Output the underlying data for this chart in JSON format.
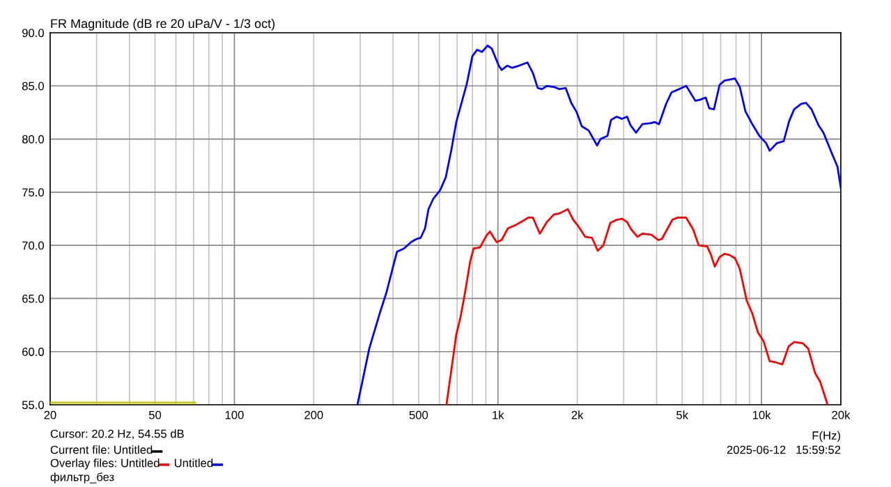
{
  "chart_data": {
    "type": "line",
    "title": "FR Magnitude (dB re 20 uPa/V - 1/3 oct)",
    "xlabel": "F(Hz)",
    "log": "x",
    "grid": true,
    "legend": "bottom",
    "line_style": "solid",
    "marker": "none",
    "xlim": [
      20,
      20000
    ],
    "ylim": [
      55,
      90
    ],
    "xticks": [
      20,
      {
        "value": 30,
        "label": null
      },
      {
        "value": 40,
        "label": null
      },
      50,
      {
        "value": 60,
        "label": null
      },
      {
        "value": 70,
        "label": null
      },
      {
        "value": 80,
        "label": null
      },
      {
        "value": 90,
        "label": null
      },
      100,
      200,
      {
        "value": 300,
        "label": null
      },
      {
        "value": 400,
        "label": null
      },
      500,
      {
        "value": 600,
        "label": null
      },
      {
        "value": 700,
        "label": null
      },
      {
        "value": 800,
        "label": null
      },
      {
        "value": 900,
        "label": null
      },
      {
        "value": 1000,
        "label": "1k"
      },
      {
        "value": 2000,
        "label": "2k"
      },
      {
        "value": 3000,
        "label": null
      },
      {
        "value": 4000,
        "label": null
      },
      {
        "value": 5000,
        "label": "5k"
      },
      {
        "value": 6000,
        "label": null
      },
      {
        "value": 7000,
        "label": null
      },
      {
        "value": 8000,
        "label": null
      },
      {
        "value": 9000,
        "label": null
      },
      {
        "value": 10000,
        "label": "10k"
      },
      {
        "value": 20000,
        "label": "20k"
      }
    ],
    "yticks": [
      {
        "value": 55,
        "label": "55.0"
      },
      {
        "value": 60,
        "label": "60.0"
      },
      {
        "value": 65,
        "label": "65.0"
      },
      {
        "value": 70,
        "label": "70.0"
      },
      {
        "value": 75,
        "label": "75.0"
      },
      {
        "value": 80,
        "label": "80.0"
      },
      {
        "value": 85,
        "label": "85.0"
      },
      {
        "value": 90,
        "label": "90.0"
      }
    ],
    "series": [
      {
        "name": "Untitled",
        "color": "#ff0000",
        "x": [
          638,
          666,
          695,
          722,
          752,
          785,
          809,
          855,
          904,
          932,
          989,
          1033,
          1091,
          1166,
          1225,
          1302,
          1358,
          1443,
          1534,
          1630,
          1710,
          1842,
          1932,
          2018,
          2144,
          2276,
          2392,
          2512,
          2668,
          2820,
          2958,
          3090,
          3204,
          3384,
          3532,
          3820,
          4060,
          4188,
          4590,
          4790,
          5180,
          5504,
          5780,
          6220,
          6412,
          6652,
          6934,
          7240,
          7552,
          7930,
          8272,
          8790,
          9226,
          9700,
          10180,
          10740,
          11300,
          12000,
          12680,
          13300,
          14320,
          15040,
          15960,
          16680,
          17820
        ],
        "values": [
          55.0,
          58.3,
          61.6,
          63.3,
          65.7,
          68.5,
          69.7,
          69.8,
          70.9,
          71.3,
          70.3,
          70.5,
          71.6,
          71.9,
          72.2,
          72.6,
          72.6,
          71.1,
          72.2,
          72.9,
          73.0,
          73.4,
          72.4,
          71.8,
          70.8,
          70.7,
          69.5,
          70.0,
          72.1,
          72.4,
          72.5,
          72.2,
          71.5,
          70.8,
          71.1,
          71.0,
          70.5,
          70.6,
          72.4,
          72.6,
          72.6,
          71.5,
          70.0,
          69.9,
          69.2,
          68.0,
          68.9,
          69.2,
          69.1,
          68.8,
          67.8,
          64.8,
          63.6,
          61.8,
          61.0,
          59.1,
          59.0,
          58.8,
          60.5,
          60.9,
          60.8,
          60.3,
          58.0,
          57.2,
          55.0
        ]
      },
      {
        "name": "Untitled",
        "color": "#0000ff",
        "x": [
          293,
          306,
          325,
          356,
          378,
          402,
          414,
          440,
          468,
          491,
          509,
          529,
          545,
          569,
          604,
          634,
          666,
          695,
          726,
          762,
          800,
          834,
          870,
          914,
          948,
          1007,
          1033,
          1084,
          1130,
          1202,
          1294,
          1358,
          1416,
          1470,
          1534,
          1630,
          1710,
          1807,
          1898,
          1992,
          2080,
          2210,
          2378,
          2450,
          2604,
          2686,
          2820,
          2958,
          3090,
          3184,
          3342,
          3532,
          3820,
          3938,
          4084,
          4344,
          4560,
          4876,
          5180,
          5610,
          5852,
          6144,
          6332,
          6602,
          6934,
          7240,
          7600,
          7930,
          8272,
          8690,
          9226,
          9816,
          10420,
          10740,
          11420,
          12140,
          12740,
          13300,
          14140,
          14760,
          15480,
          16460,
          17180,
          18600,
          19420,
          20000
        ],
        "values": [
          55.0,
          57.2,
          60.3,
          63.6,
          65.6,
          68.2,
          69.4,
          69.7,
          70.3,
          70.6,
          70.7,
          71.6,
          73.4,
          74.4,
          75.2,
          76.4,
          79.0,
          81.6,
          83.3,
          85.2,
          87.8,
          88.4,
          88.2,
          88.8,
          88.5,
          86.9,
          86.5,
          86.9,
          86.7,
          86.9,
          87.2,
          86.2,
          84.8,
          84.7,
          85.0,
          84.9,
          84.7,
          84.8,
          83.4,
          82.5,
          81.2,
          80.8,
          79.4,
          80.0,
          80.3,
          81.8,
          82.1,
          81.9,
          82.1,
          81.3,
          80.6,
          81.4,
          81.5,
          81.6,
          81.4,
          83.3,
          84.4,
          84.7,
          85.0,
          83.6,
          83.7,
          83.9,
          82.9,
          82.8,
          85.1,
          85.5,
          85.6,
          85.7,
          84.9,
          82.6,
          81.4,
          80.3,
          79.6,
          78.9,
          79.6,
          79.8,
          81.7,
          82.8,
          83.3,
          83.4,
          82.8,
          81.3,
          80.6,
          78.5,
          77.4,
          75.4
        ]
      },
      {
        "color": "#c8c800",
        "x": [
          20,
          71
        ],
        "values": [
          55.2,
          55.2
        ]
      }
    ],
    "annotations": [
      "Cursor: 20.2 Hz, 54.55 dB",
      "Current file: Untitled",
      "Overlay files:",
      "фильтр_без",
      "2025-06-12   15:59:52"
    ]
  }
}
